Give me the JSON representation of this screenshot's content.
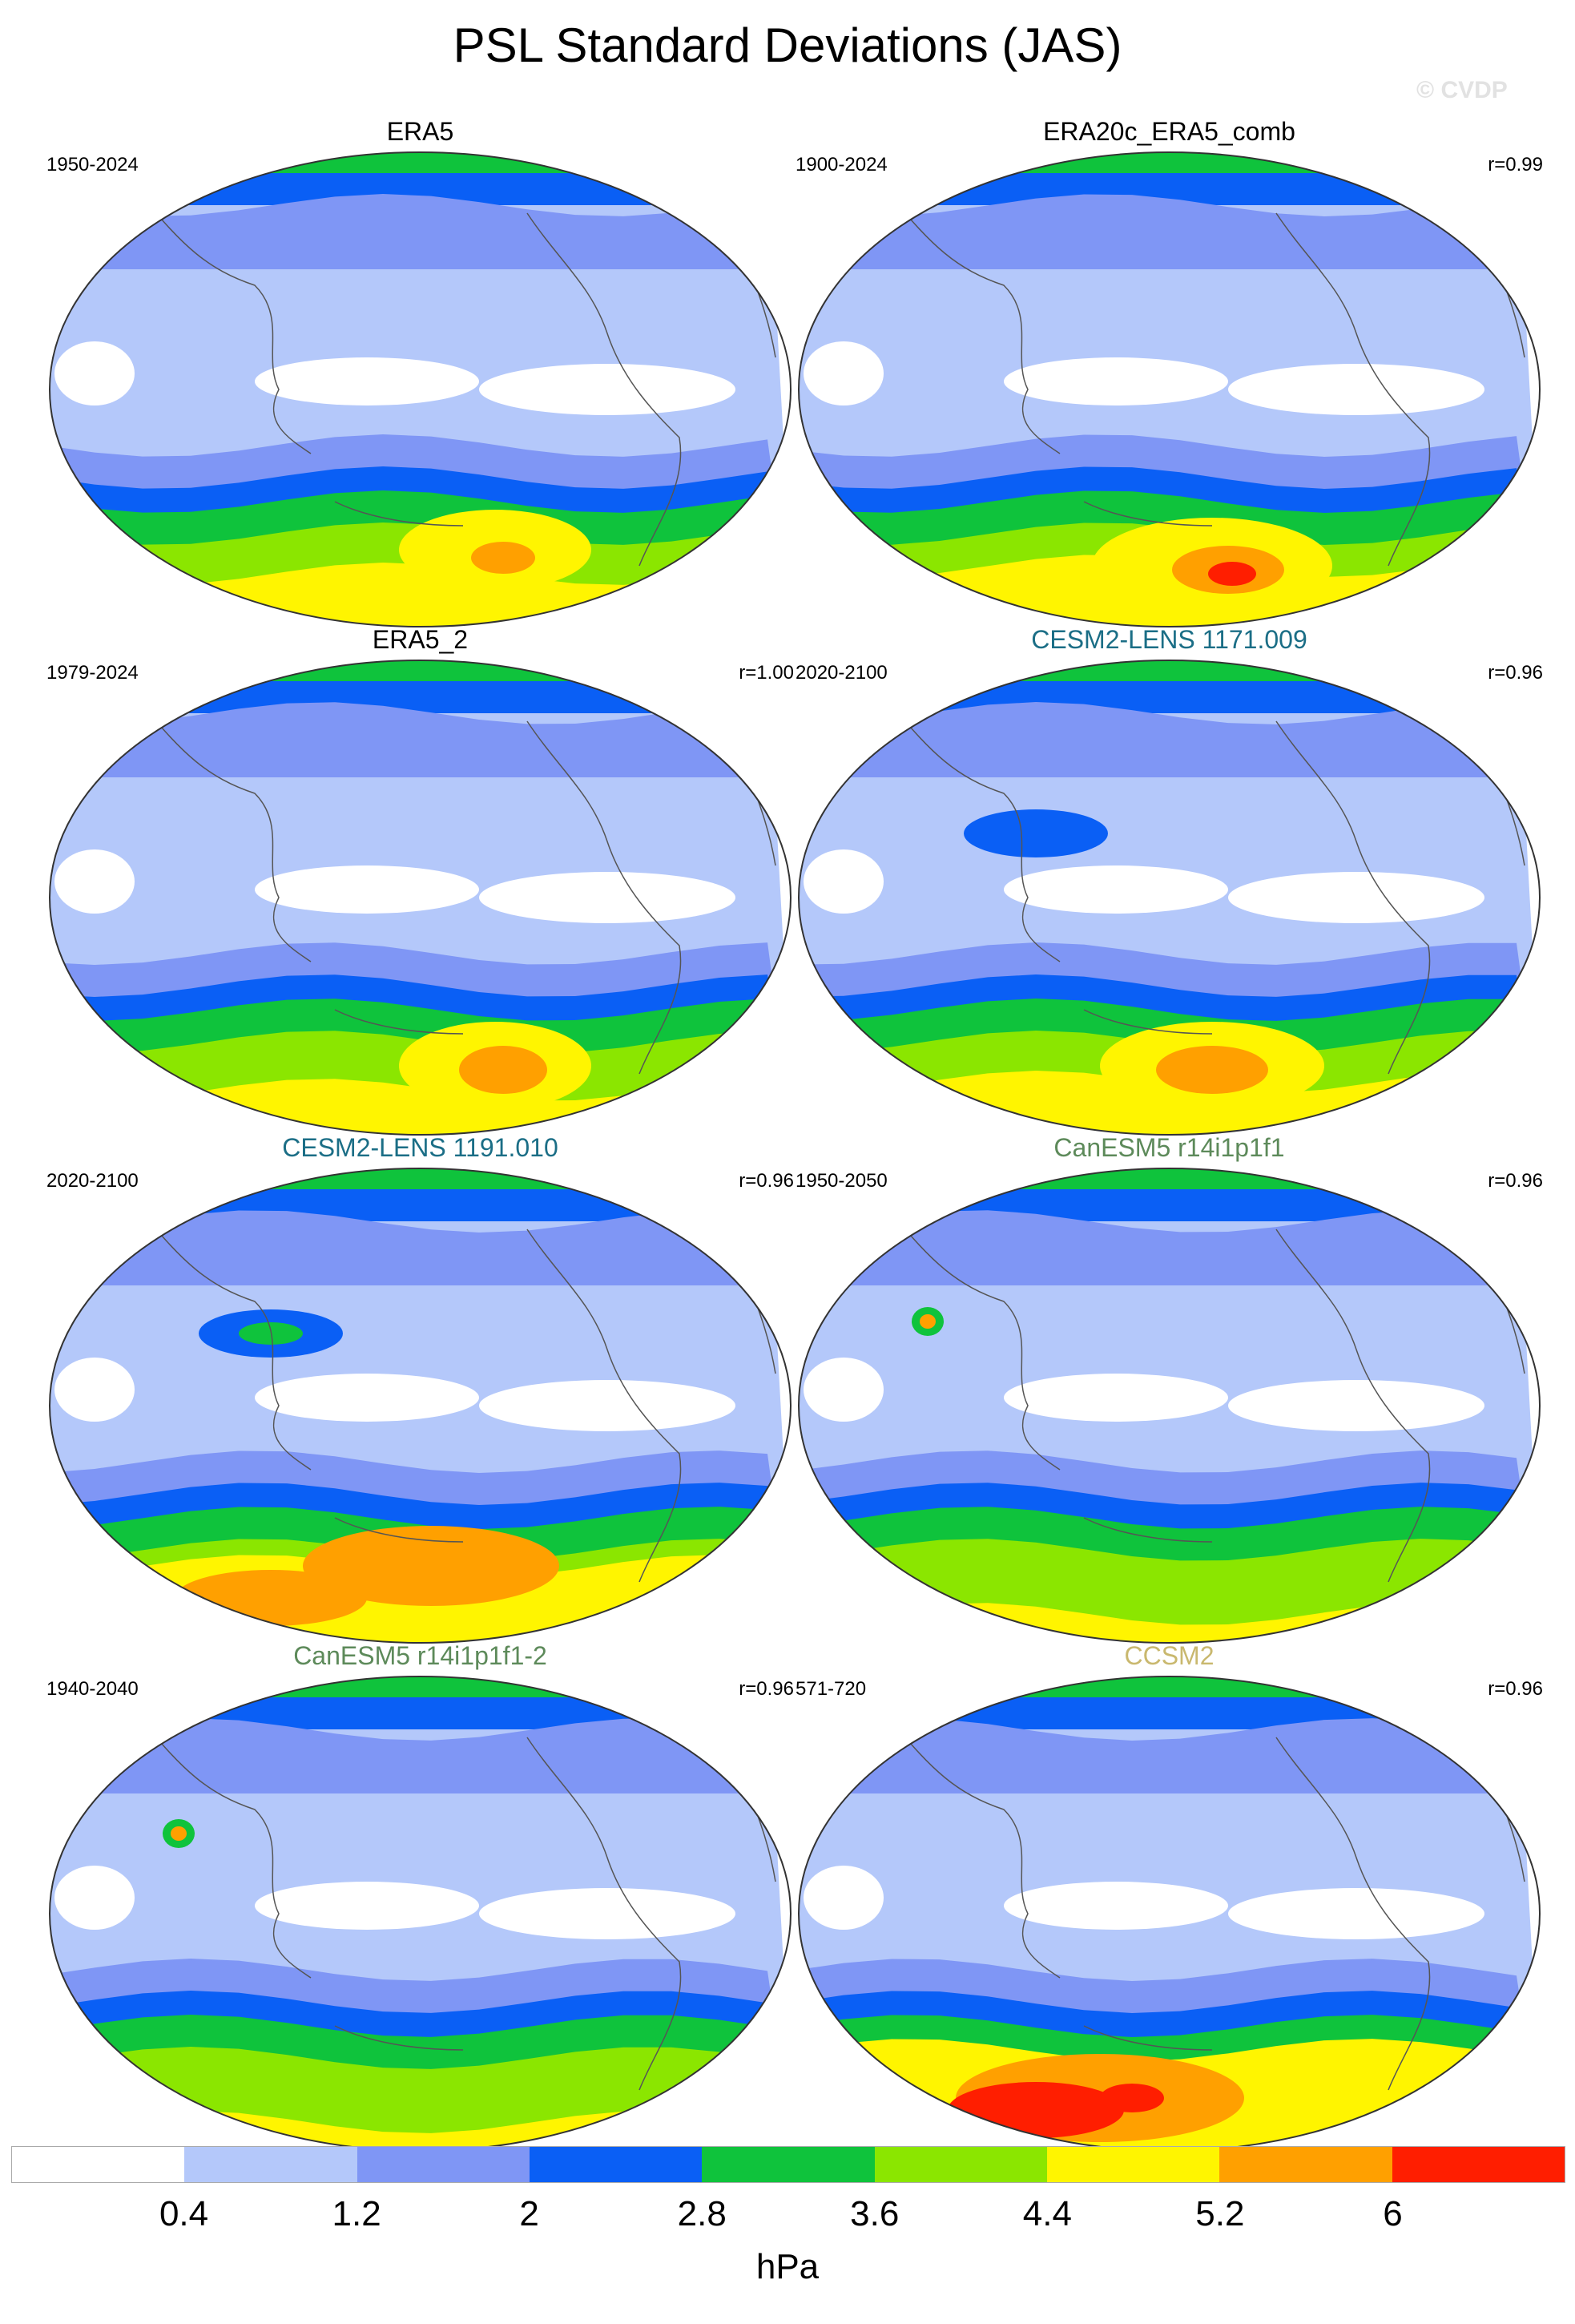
{
  "title": "PSL Standard Deviations (JAS)",
  "watermark": "© CVDP",
  "panels": [
    {
      "label": "ERA5",
      "years": "1950-2024",
      "corr": "",
      "label_color": "#000000"
    },
    {
      "label": "ERA20c_ERA5_comb",
      "years": "1900-2024",
      "corr": "r=0.99",
      "label_color": "#000000"
    },
    {
      "label": "ERA5_2",
      "years": "1979-2024",
      "corr": "r=1.00",
      "label_color": "#000000"
    },
    {
      "label": "CESM2-LENS 1171.009",
      "years": "2020-2100",
      "corr": "r=0.96",
      "label_color": "#1b6e86"
    },
    {
      "label": "CESM2-LENS 1191.010",
      "years": "2020-2100",
      "corr": "r=0.96",
      "label_color": "#1b6e86"
    },
    {
      "label": "CanESM5 r14i1p1f1",
      "years": "1950-2050",
      "corr": "r=0.96",
      "label_color": "#5d8a5a"
    },
    {
      "label": "CanESM5 r14i1p1f1-2",
      "years": "1940-2040",
      "corr": "r=0.96",
      "label_color": "#5d8a5a"
    },
    {
      "label": "CCSM2",
      "years": "571-720",
      "corr": "r=0.96",
      "label_color": "#c9b86e"
    }
  ],
  "colorbar": {
    "colors": [
      "#ffffff",
      "#b4c8fa",
      "#7f96f5",
      "#0a5ff5",
      "#0fc33c",
      "#8be600",
      "#fff500",
      "#ffa000",
      "#ff1e00"
    ],
    "labels": [
      "0.4",
      "1.2",
      "2",
      "2.8",
      "3.6",
      "4.4",
      "5.2",
      "6"
    ],
    "unit": "hPa"
  }
}
